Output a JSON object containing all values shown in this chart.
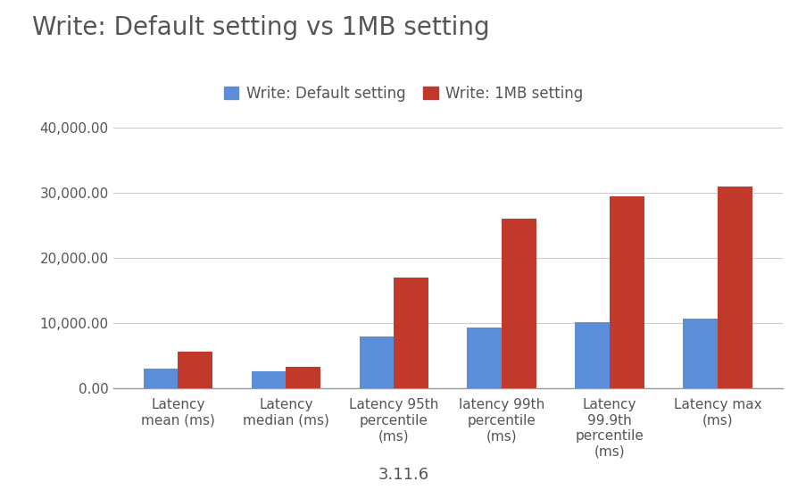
{
  "title": "Write: Default setting vs 1MB setting",
  "subtitle": "3.11.6",
  "categories": [
    "Latency\nmean (ms)",
    "Latency\nmedian (ms)",
    "Latency 95th\npercentile\n(ms)",
    "latency 99th\npercentile\n(ms)",
    "Latency\n99.9th\npercentile\n(ms)",
    "Latency max\n(ms)"
  ],
  "series": [
    {
      "name": "Write: Default setting",
      "values": [
        3000,
        2700,
        8000,
        9300,
        10200,
        10700
      ],
      "color": "#5b8dd9"
    },
    {
      "name": "Write: 1MB setting",
      "values": [
        5700,
        3300,
        17000,
        26000,
        29500,
        31000
      ],
      "color": "#c0392b"
    }
  ],
  "ylim": [
    0,
    42000
  ],
  "yticks": [
    0,
    10000,
    20000,
    30000,
    40000
  ],
  "ytick_labels": [
    "0.00",
    "10,000.00",
    "20,000.00",
    "30,000.00",
    "40,000.00"
  ],
  "background_color": "#ffffff",
  "title_color": "#555555",
  "title_fontsize": 20,
  "tick_fontsize": 11,
  "legend_fontsize": 12,
  "subtitle_fontsize": 13,
  "subtitle_color": "#555555",
  "grid_color": "#cccccc",
  "bar_width": 0.32
}
